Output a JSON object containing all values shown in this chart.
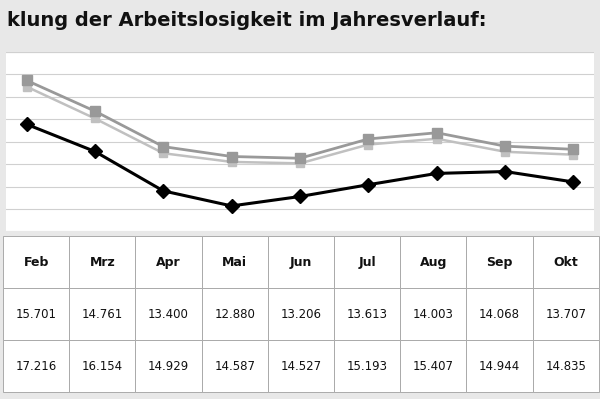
{
  "title": "klung der Arbeitslosigkeit im Jahresverlauf:",
  "months": [
    "Feb",
    "Mrz",
    "Apr",
    "Mai",
    "Jun",
    "Jul",
    "Aug",
    "Sep",
    "Okt"
  ],
  "series1": [
    15701,
    14761,
    13400,
    12880,
    13206,
    13613,
    14003,
    14068,
    13707
  ],
  "series2": [
    17216,
    16154,
    14929,
    14587,
    14527,
    15193,
    15407,
    14944,
    14835
  ],
  "series2b": [
    17000,
    15900,
    14700,
    14400,
    14350,
    15000,
    15200,
    14750,
    14650
  ],
  "series1_color": "#000000",
  "series2_color": "#999999",
  "series2b_color": "#c0c0c0",
  "series1_marker": "D",
  "series2_marker": "s",
  "title_fontsize": 14,
  "bg_color": "#e8e8e8",
  "plot_bg": "#ffffff",
  "table_row1": [
    "15.701",
    "14.761",
    "13.400",
    "12.880",
    "13.206",
    "13.613",
    "14.003",
    "14.068",
    "13.707"
  ],
  "table_row2": [
    "17.216",
    "16.154",
    "14.929",
    "14.587",
    "14.527",
    "15.193",
    "15.407",
    "14.944",
    "14.835"
  ],
  "ylim_min": 12000,
  "ylim_max": 18200,
  "grid_color": "#d0d0d0",
  "n_gridlines": 9
}
